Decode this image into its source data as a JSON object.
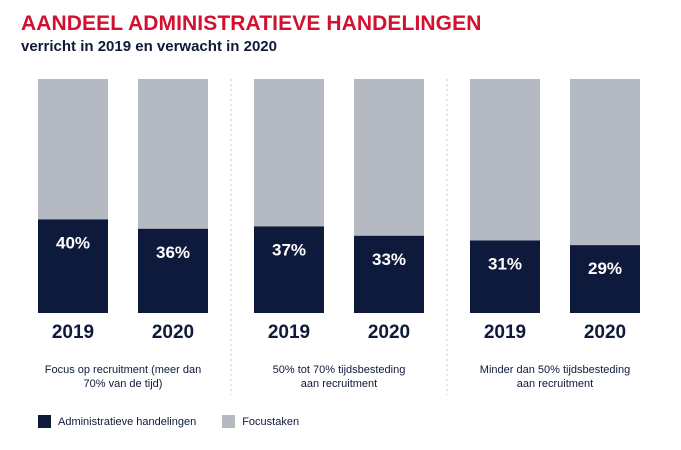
{
  "title": "AANDEEL ADMINISTRATIEVE HANDELINGEN",
  "subtitle": "verricht in 2019 en verwacht in 2020",
  "colors": {
    "title": "#d2102f",
    "admin": "#0e1a3c",
    "focus": "#b5b9c1",
    "text": "#0f1a3a",
    "divider": "#c8c8c8"
  },
  "chart_data": {
    "type": "bar",
    "stacked": true,
    "ylim": [
      0,
      100
    ],
    "series": [
      {
        "name": "Administratieve handelingen",
        "color": "#0e1a3c"
      },
      {
        "name": "Focustaken",
        "color": "#b5b9c1"
      }
    ],
    "groups": [
      {
        "label": [
          "Focus op recruitment (meer dan",
          "70% van de tijd)"
        ],
        "bars": [
          {
            "year": "2019",
            "value": 40,
            "label": "40%"
          },
          {
            "year": "2020",
            "value": 36,
            "label": "36%"
          }
        ]
      },
      {
        "label": [
          "50% tot 70% tijdsbesteding",
          "aan recruitment"
        ],
        "bars": [
          {
            "year": "2019",
            "value": 37,
            "label": "37%"
          },
          {
            "year": "2020",
            "value": 33,
            "label": "33%"
          }
        ]
      },
      {
        "label": [
          "Minder dan 50% tijdsbesteding",
          "aan recruitment"
        ],
        "bars": [
          {
            "year": "2019",
            "value": 31,
            "label": "31%"
          },
          {
            "year": "2020",
            "value": 29,
            "label": "29%"
          }
        ]
      }
    ]
  },
  "legend": {
    "items": [
      {
        "label": "Administratieve handelingen",
        "color": "#0e1a3c"
      },
      {
        "label": "Focustaken",
        "color": "#b5b9c1"
      }
    ]
  }
}
